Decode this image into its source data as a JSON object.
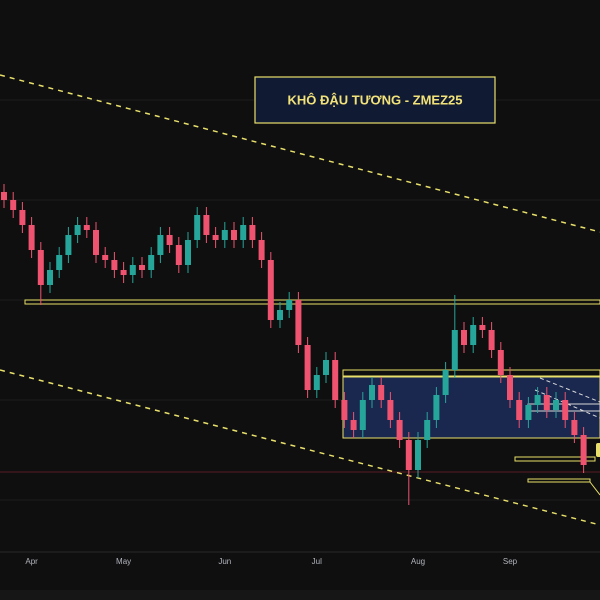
{
  "chart_data": {
    "type": "candlestick",
    "title": "KHÔ ĐẬU TƯƠNG - ZMEZ25",
    "categories": [
      null,
      null,
      null,
      "Apr",
      null,
      null,
      null,
      null,
      null,
      null,
      null,
      null,
      null,
      "May",
      null,
      null,
      null,
      null,
      null,
      null,
      null,
      null,
      null,
      null,
      "Jun",
      null,
      null,
      null,
      null,
      null,
      null,
      null,
      null,
      null,
      "Jul",
      null,
      null,
      null,
      null,
      null,
      null,
      null,
      null,
      null,
      null,
      "Aug",
      null,
      null,
      null,
      null,
      null,
      null,
      null,
      null,
      null,
      "Sep",
      null,
      null,
      null,
      null,
      null,
      null,
      null,
      null
    ],
    "open": [
      368,
      360,
      350,
      335,
      310,
      275,
      290,
      305,
      325,
      335,
      330,
      305,
      300,
      290,
      285,
      295,
      290,
      305,
      325,
      315,
      295,
      320,
      345,
      325,
      320,
      330,
      320,
      335,
      320,
      300,
      240,
      250,
      260,
      215,
      170,
      185,
      200,
      160,
      140,
      130,
      160,
      175,
      160,
      140,
      120,
      90,
      120,
      140,
      165,
      190,
      230,
      215,
      235,
      230,
      210,
      185,
      160,
      140,
      155,
      165,
      150,
      160,
      140,
      125
    ],
    "high": [
      376,
      368,
      358,
      343,
      318,
      298,
      313,
      333,
      343,
      343,
      338,
      313,
      308,
      298,
      303,
      303,
      313,
      333,
      333,
      323,
      328,
      353,
      353,
      333,
      338,
      338,
      343,
      343,
      328,
      308,
      258,
      268,
      268,
      223,
      193,
      208,
      208,
      168,
      148,
      168,
      183,
      183,
      168,
      148,
      128,
      128,
      148,
      173,
      198,
      265,
      238,
      243,
      243,
      238,
      218,
      193,
      168,
      163,
      173,
      173,
      168,
      168,
      148,
      133
    ],
    "low": [
      352,
      342,
      327,
      302,
      255,
      267,
      282,
      297,
      317,
      322,
      297,
      292,
      282,
      277,
      277,
      282,
      282,
      297,
      307,
      287,
      287,
      312,
      317,
      312,
      312,
      312,
      312,
      312,
      292,
      232,
      232,
      242,
      207,
      162,
      162,
      177,
      152,
      132,
      122,
      122,
      152,
      152,
      132,
      112,
      55,
      82,
      112,
      132,
      157,
      182,
      207,
      207,
      222,
      202,
      177,
      152,
      132,
      132,
      147,
      142,
      142,
      132,
      117,
      87
    ],
    "close": [
      360,
      350,
      335,
      310,
      275,
      290,
      305,
      325,
      335,
      330,
      305,
      300,
      290,
      285,
      295,
      290,
      305,
      325,
      315,
      295,
      320,
      345,
      325,
      320,
      330,
      320,
      335,
      320,
      300,
      240,
      250,
      260,
      215,
      170,
      185,
      200,
      160,
      140,
      130,
      160,
      175,
      160,
      140,
      120,
      90,
      120,
      140,
      165,
      190,
      230,
      215,
      235,
      230,
      210,
      185,
      160,
      140,
      155,
      165,
      150,
      160,
      140,
      125,
      95
    ],
    "up_color": "#26a69a",
    "down_color": "#ef5370",
    "ylim": [
      0,
      560
    ]
  }
}
